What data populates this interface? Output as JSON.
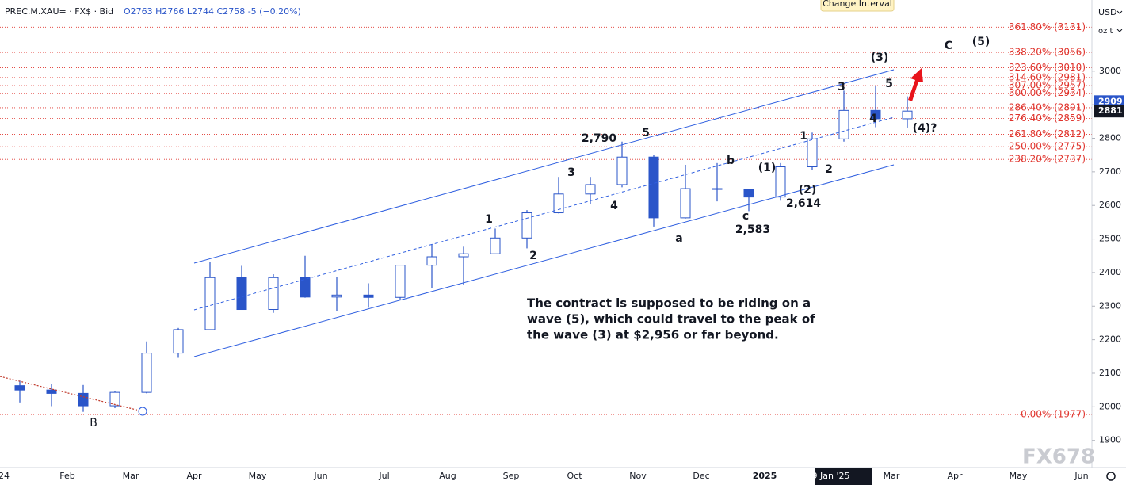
{
  "chart_data": {
    "type": "candlestick",
    "title": "PREC.M.XAU= · FX$ · Bid",
    "ohlc_text": "O2763 H2766 L2744 C2758 -5 (−0.20%)",
    "currency": "USD",
    "unit": "oz t",
    "tooltip": "Change Interval",
    "watermark": "FX678",
    "color": "#2a55c9",
    "categories": [
      "24",
      null,
      "Feb",
      null,
      "Mar",
      null,
      "Apr",
      null,
      "May",
      null,
      "Jun",
      null,
      "Jul",
      null,
      "Aug",
      null,
      "Sep",
      null,
      "Oct",
      null,
      "Nov",
      null,
      "Dec",
      null,
      "2025",
      null,
      "29 Jan '25",
      null,
      "Mar",
      null,
      "Apr",
      null,
      "May",
      null,
      "Jun"
    ],
    "open": [
      2063,
      2050,
      2040,
      2003,
      2043,
      2160,
      2230,
      2385,
      2290,
      2385,
      2327,
      2333,
      2326,
      2422,
      2447,
      2456,
      2503,
      2578,
      2634,
      2662,
      2744,
      2563,
      2650,
      2648,
      2625,
      2715,
      2798,
      2883,
      2858,
      null,
      null,
      null,
      null,
      null,
      null
    ],
    "high": [
      2078,
      2067,
      2065,
      2048,
      2195,
      2235,
      2432,
      2420,
      2395,
      2450,
      2388,
      2368,
      2420,
      2484,
      2477,
      2531,
      2586,
      2685,
      2685,
      2790,
      2750,
      2721,
      2726,
      2650,
      2726,
      2817,
      2942,
      2956,
      2925,
      null,
      null,
      null,
      null,
      null,
      null
    ],
    "low": [
      2013,
      2002,
      1985,
      1996,
      2040,
      2146,
      2228,
      2291,
      2280,
      2325,
      2286,
      2295,
      2318,
      2353,
      2364,
      2455,
      2472,
      2576,
      2604,
      2654,
      2537,
      2561,
      2612,
      2583,
      2614,
      2706,
      2790,
      2833,
      2832,
      null,
      null,
      null,
      null,
      null,
      null
    ],
    "close": [
      2050,
      2040,
      2003,
      2043,
      2160,
      2230,
      2385,
      2290,
      2385,
      2327,
      2333,
      2326,
      2422,
      2447,
      2456,
      2503,
      2578,
      2634,
      2662,
      2744,
      2563,
      2650,
      2648,
      2625,
      2715,
      2798,
      2883,
      2858,
      2881,
      null,
      null,
      null,
      null,
      null,
      null
    ],
    "ylim": [
      1819,
      3212
    ],
    "yticks": [
      1900,
      2000,
      2100,
      2200,
      2300,
      2400,
      2500,
      2600,
      2700,
      2800,
      2900,
      3000
    ],
    "price_tags": [
      2909,
      2881
    ],
    "fib_levels": [
      {
        "value": 3131,
        "label": "361.80% (3131)"
      },
      {
        "value": 3056,
        "label": "338.20% (3056)"
      },
      {
        "value": 3010,
        "label": "323.60% (3010)"
      },
      {
        "value": 2981,
        "label": "314.60% (2981)"
      },
      {
        "value": 2957,
        "label": "307.00% (2957)"
      },
      {
        "value": 2934,
        "label": "300.00% (2934)"
      },
      {
        "value": 2891,
        "label": "286.40% (2891)"
      },
      {
        "value": 2859,
        "label": "276.40% (2859)"
      },
      {
        "value": 2812,
        "label": "261.80% (2812)"
      },
      {
        "value": 2775,
        "label": "250.00% (2775)"
      },
      {
        "value": 2737,
        "label": "238.20% (2737)"
      },
      {
        "value": 1977,
        "label": "0.00% (1977)"
      }
    ],
    "annotations": [
      "(3)",
      "C",
      "(5)",
      "3",
      "5",
      "4",
      "(4)?",
      "2,790",
      "5",
      "1",
      "b",
      "(1)",
      "2",
      "(2)",
      "2,614",
      "c",
      "2,583",
      "a",
      "3",
      "4",
      "1",
      "2",
      "B"
    ],
    "note": [
      "The contract is supposed to be riding on a",
      "wave (5), which could travel to the peak of",
      "the wave (3) at $2,956 or far beyond."
    ]
  }
}
